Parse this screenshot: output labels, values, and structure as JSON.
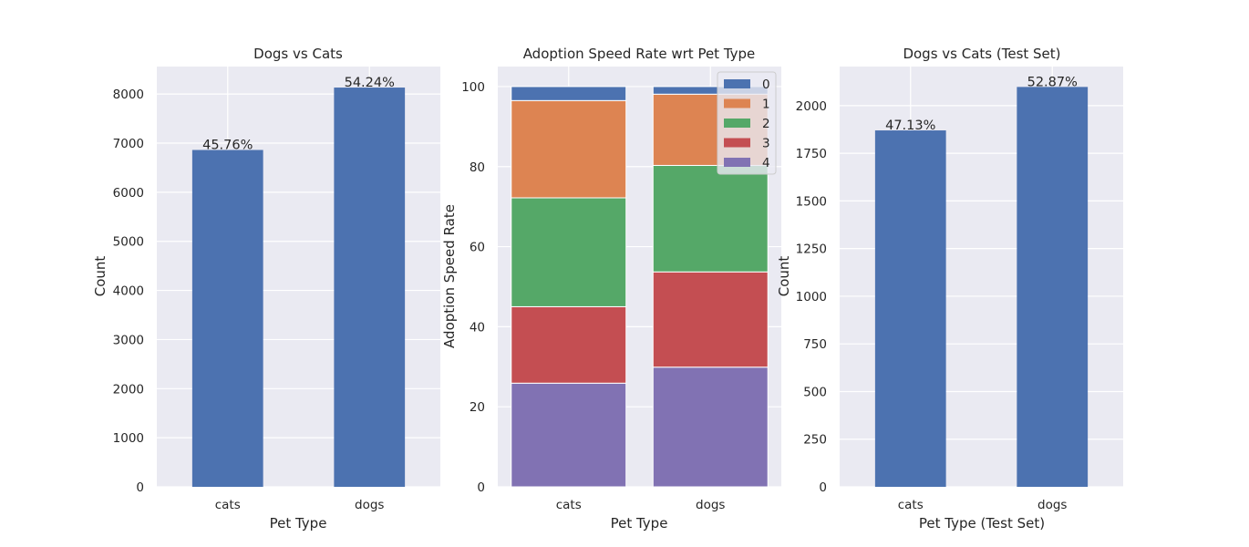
{
  "chart_data": [
    {
      "type": "bar",
      "title": "Dogs vs Cats",
      "xlabel": "Pet Type",
      "ylabel": "Count",
      "categories": [
        "cats",
        "dogs"
      ],
      "values": [
        6861,
        8132
      ],
      "bar_labels": [
        "45.76%",
        "54.24%"
      ],
      "ylim": [
        0,
        8560
      ],
      "yticks": [
        0,
        1000,
        2000,
        3000,
        4000,
        5000,
        6000,
        7000,
        8000
      ],
      "grid": true,
      "color": "#4c72b0"
    },
    {
      "type": "bar",
      "stacked": true,
      "title": "Adoption Speed Rate wrt Pet Type",
      "xlabel": "Pet Type",
      "ylabel": "Adoption Speed Rate",
      "categories": [
        "cats",
        "dogs"
      ],
      "ylim": [
        0,
        105
      ],
      "yticks": [
        0,
        20,
        40,
        60,
        80,
        100
      ],
      "grid": true,
      "legend_position": "top-right",
      "series": [
        {
          "name": "4",
          "values": [
            25.9,
            29.9
          ],
          "color": "#8172b3"
        },
        {
          "name": "3",
          "values": [
            19.1,
            23.8
          ],
          "color": "#c44e52"
        },
        {
          "name": "2",
          "values": [
            27.2,
            26.6
          ],
          "color": "#55a868"
        },
        {
          "name": "1",
          "values": [
            24.3,
            17.8
          ],
          "color": "#dd8452"
        },
        {
          "name": "0",
          "values": [
            3.5,
            1.9
          ],
          "color": "#4c72b0"
        }
      ],
      "legend_order": [
        "0",
        "1",
        "2",
        "3",
        "4"
      ]
    },
    {
      "type": "bar",
      "title": "Dogs vs Cats (Test Set)",
      "xlabel": "Pet Type (Test Set)",
      "ylabel": "Count",
      "categories": [
        "cats",
        "dogs"
      ],
      "values": [
        1870,
        2098
      ],
      "bar_labels": [
        "47.13%",
        "52.87%"
      ],
      "ylim": [
        0,
        2205
      ],
      "yticks": [
        0,
        250,
        500,
        750,
        1000,
        1250,
        1500,
        1750,
        2000
      ],
      "grid": true,
      "color": "#4c72b0"
    }
  ]
}
